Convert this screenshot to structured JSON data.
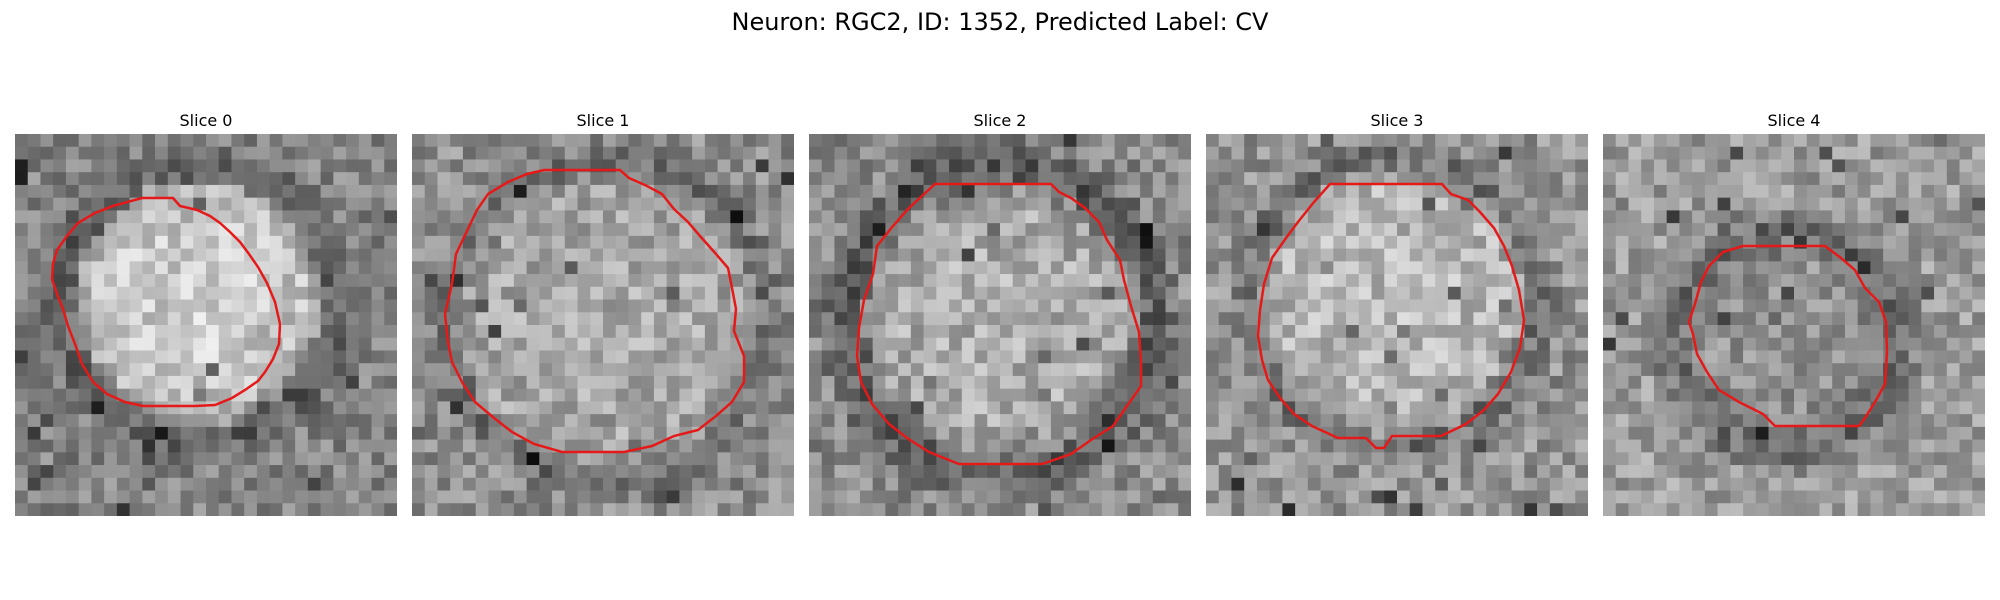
{
  "figure": {
    "title": "Neuron: RGC2, ID: 1352, Predicted Label: CV"
  },
  "colors": {
    "outline": "#e61919",
    "background": "#ffffff"
  },
  "panels": [
    {
      "label": "Slice 0"
    },
    {
      "label": "Slice 1"
    },
    {
      "label": "Slice 2"
    },
    {
      "label": "Slice 3"
    },
    {
      "label": "Slice 4"
    }
  ]
}
